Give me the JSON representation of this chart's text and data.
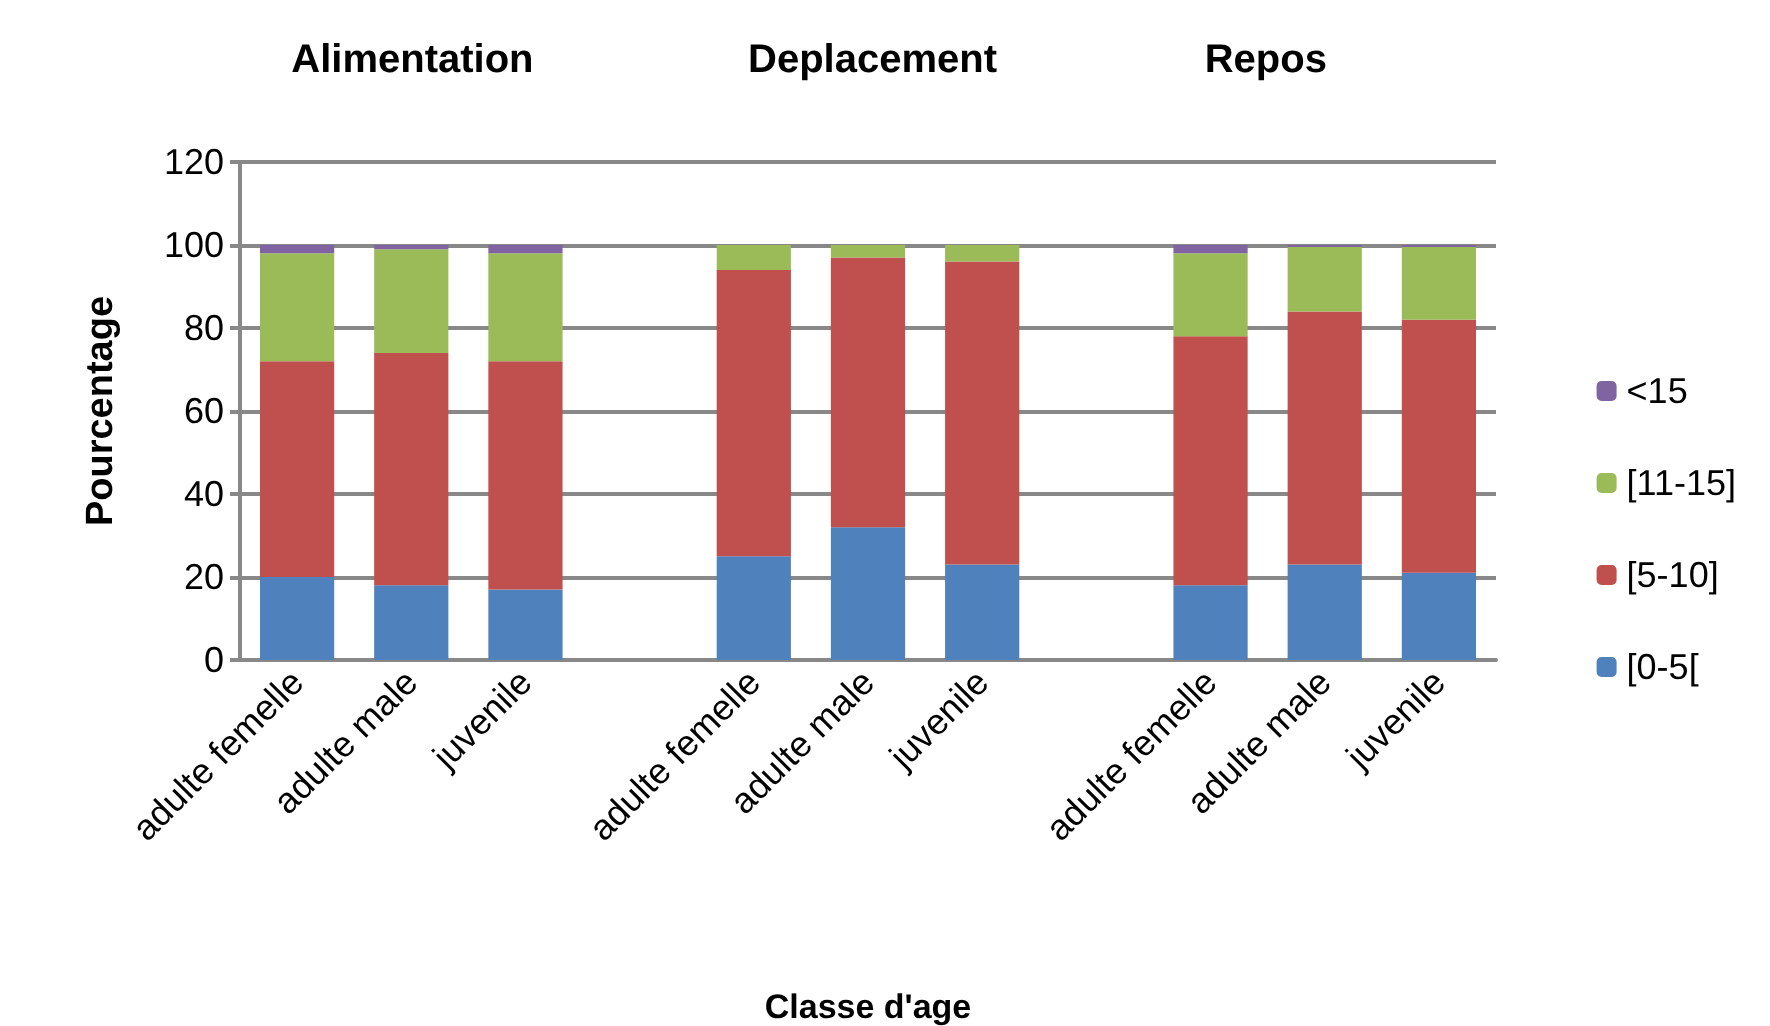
{
  "chart_data": {
    "type": "bar",
    "stacked": true,
    "xlabel": "Classe d'age",
    "ylabel": "Pourcentage",
    "annotations": [
      "Alimentation",
      "Deplacement",
      "Repos"
    ],
    "categories": [
      "adulte femelle",
      "adulte male",
      "juvenile",
      null,
      "adulte femelle",
      "adulte male",
      "juvenile",
      null,
      "adulte femelle",
      "adulte male",
      "juvenile"
    ],
    "series": [
      {
        "name": "[0-5[",
        "color": "#4f81bd",
        "values": [
          20,
          18,
          17,
          null,
          25,
          32,
          23,
          null,
          18,
          23,
          21
        ]
      },
      {
        "name": "[5-10]",
        "color": "#c0504d",
        "values": [
          52,
          56,
          55,
          null,
          69,
          65,
          73,
          null,
          60,
          61,
          61
        ]
      },
      {
        "name": "[11-15]",
        "color": "#9bbb59",
        "values": [
          26,
          25,
          26,
          null,
          6,
          3,
          4,
          null,
          20,
          15.5,
          17.5
        ]
      },
      {
        "name": "<15",
        "color": "#8064a2",
        "values": [
          2,
          1,
          2,
          null,
          0,
          0,
          0,
          null,
          2,
          0.5,
          0.5
        ]
      }
    ],
    "ylim": [
      0,
      120
    ],
    "yticks": [
      0,
      20,
      40,
      60,
      80,
      100,
      120
    ],
    "grid": "y",
    "legend": "right"
  }
}
